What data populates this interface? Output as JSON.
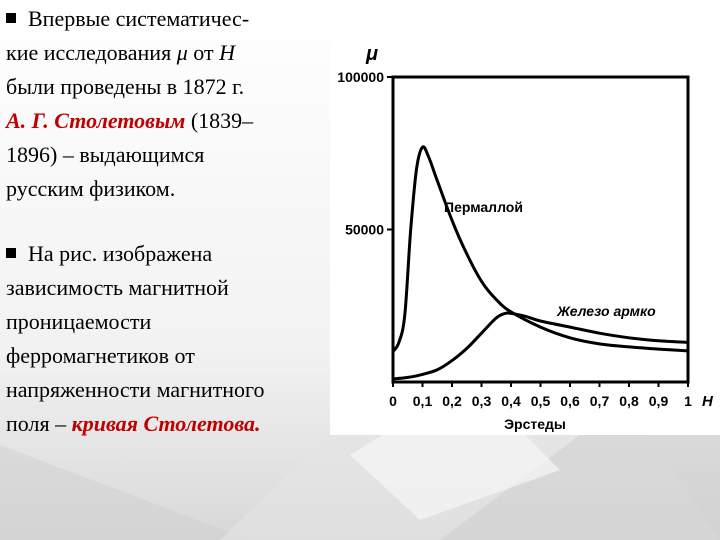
{
  "text": {
    "p1": {
      "lines": [
        "Впервые систематичес-",
        "кие исследования ",
        "были проведены в 1872 г.",
        "А. Г. Столетовым",
        "1896) – выдающимся",
        "русским физиком."
      ],
      "mu_symbol": "μ",
      "from_word": " от ",
      "h_symbol": "Н",
      "year_open": " (1839–"
    },
    "p2": {
      "lines": [
        "На рис. изображена",
        "зависимость магнитной",
        "проницаемости",
        "ферромагнетиков от",
        "напряженности магнитного",
        "поля – "
      ],
      "highlight": "кривая Столетова."
    }
  },
  "chart_data": {
    "type": "line",
    "ylabel": "μ",
    "xlabel": "Эрстеды",
    "x_axis_symbol": "Н",
    "xlim": [
      0,
      1
    ],
    "ylim": [
      0,
      100000
    ],
    "x_ticks": [
      0,
      0.1,
      0.2,
      0.3,
      0.4,
      0.5,
      0.6,
      0.7,
      0.8,
      0.9,
      1
    ],
    "x_tick_labels": [
      "0",
      "0,1",
      "0,2",
      "0,3",
      "0,4",
      "0,5",
      "0,6",
      "0,7",
      "0,8",
      "0,9",
      "1"
    ],
    "y_ticks": [
      50000,
      100000
    ],
    "y_tick_labels": [
      "50000",
      "100000"
    ],
    "series": [
      {
        "name": "Пермаллой",
        "x": [
          0,
          0.02,
          0.04,
          0.06,
          0.08,
          0.1,
          0.12,
          0.15,
          0.2,
          0.25,
          0.3,
          0.35,
          0.4,
          0.5,
          0.6,
          0.7,
          0.8,
          0.9,
          1.0
        ],
        "y": [
          10000,
          13000,
          22000,
          50000,
          70000,
          77000,
          74000,
          66000,
          53000,
          42000,
          33000,
          27000,
          23000,
          18000,
          14500,
          12500,
          11500,
          10800,
          10200
        ]
      },
      {
        "name": "Железо армко",
        "x": [
          0,
          0.05,
          0.1,
          0.15,
          0.2,
          0.25,
          0.3,
          0.35,
          0.38,
          0.4,
          0.45,
          0.5,
          0.6,
          0.7,
          0.8,
          0.9,
          1.0
        ],
        "y": [
          1000,
          1500,
          2500,
          4000,
          7000,
          11000,
          16000,
          21000,
          22500,
          22500,
          21500,
          20000,
          18000,
          16000,
          14500,
          13500,
          13000
        ]
      }
    ]
  }
}
